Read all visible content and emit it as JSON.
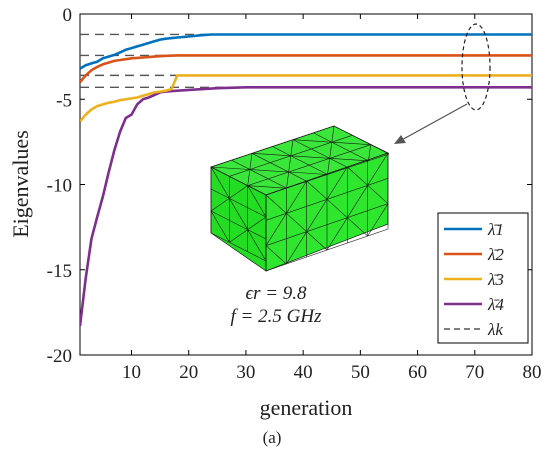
{
  "chart_data": {
    "type": "line",
    "title": "",
    "xlabel": "generation",
    "ylabel": "Eigenvalues",
    "xlim": [
      1,
      80
    ],
    "ylim": [
      -20,
      0
    ],
    "xticks": [
      10,
      20,
      30,
      40,
      50,
      60,
      70,
      80
    ],
    "yticks": [
      0,
      -5,
      -10,
      -15,
      -20
    ],
    "grid": false,
    "legend_position": "bottom-right",
    "series": [
      {
        "name": "λ̄1",
        "color": "#0072BD",
        "x": [
          1,
          2,
          3,
          4,
          5,
          6,
          7,
          8,
          9,
          10,
          11,
          12,
          13,
          14,
          15,
          16,
          18,
          20,
          22,
          24,
          26,
          30,
          40,
          50,
          60,
          70,
          80
        ],
        "y": [
          -3.2,
          -3.0,
          -2.9,
          -2.8,
          -2.6,
          -2.5,
          -2.4,
          -2.25,
          -2.1,
          -2.0,
          -1.9,
          -1.8,
          -1.7,
          -1.6,
          -1.5,
          -1.45,
          -1.38,
          -1.32,
          -1.25,
          -1.2,
          -1.2,
          -1.2,
          -1.2,
          -1.2,
          -1.2,
          -1.2,
          -1.2
        ]
      },
      {
        "name": "λ̄2",
        "color": "#D95319",
        "x": [
          1,
          2,
          3,
          4,
          5,
          6,
          7,
          8,
          9,
          10,
          12,
          14,
          16,
          18,
          20,
          30,
          40,
          50,
          60,
          70,
          80
        ],
        "y": [
          -4.0,
          -3.6,
          -3.3,
          -3.1,
          -2.95,
          -2.85,
          -2.75,
          -2.7,
          -2.65,
          -2.6,
          -2.55,
          -2.5,
          -2.45,
          -2.43,
          -2.43,
          -2.43,
          -2.43,
          -2.43,
          -2.43,
          -2.43,
          -2.43
        ]
      },
      {
        "name": "λ̄3",
        "color": "#EDB120",
        "x": [
          1,
          2,
          3,
          4,
          5,
          6,
          7,
          8,
          9,
          10,
          11,
          12,
          13,
          14,
          15,
          16,
          17,
          18,
          19,
          20,
          30,
          40,
          50,
          60,
          70,
          80
        ],
        "y": [
          -6.3,
          -5.9,
          -5.6,
          -5.4,
          -5.3,
          -5.2,
          -5.15,
          -5.05,
          -5.0,
          -4.95,
          -4.9,
          -4.8,
          -4.7,
          -4.6,
          -4.55,
          -4.5,
          -4.4,
          -3.6,
          -3.6,
          -3.6,
          -3.6,
          -3.6,
          -3.6,
          -3.6,
          -3.6,
          -3.6
        ]
      },
      {
        "name": "λ̄4",
        "color": "#7E2F8E",
        "x": [
          1,
          2,
          3,
          4,
          5,
          6,
          7,
          8,
          9,
          10,
          11,
          12,
          13,
          14,
          15,
          16,
          18,
          20,
          25,
          30,
          40,
          50,
          60,
          70,
          80
        ],
        "y": [
          -18.3,
          -15.5,
          -13.2,
          -11.9,
          -10.7,
          -9.3,
          -8.0,
          -6.9,
          -6.1,
          -5.9,
          -5.3,
          -5.0,
          -4.9,
          -4.75,
          -4.6,
          -4.55,
          -4.5,
          -4.45,
          -4.35,
          -4.3,
          -4.3,
          -4.3,
          -4.3,
          -4.3,
          -4.3
        ]
      }
    ],
    "reference_lines": {
      "name": "λk",
      "style": "dashed",
      "color": "#555555",
      "y": [
        -1.2,
        -2.43,
        -3.6,
        -4.3
      ]
    },
    "annotations": {
      "epsilon": "ϵr = 9.8",
      "frequency": "f = 2.5 GHz",
      "caption": "(a)"
    }
  }
}
